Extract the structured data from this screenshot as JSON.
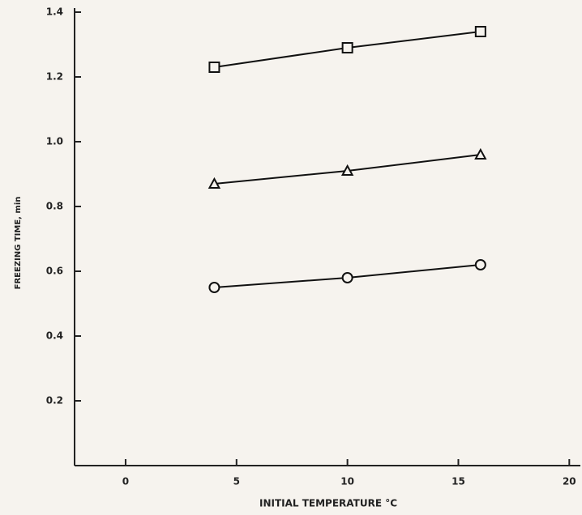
{
  "chart_data": {
    "type": "line",
    "xlabel": "INITIAL TEMPERATURE °C",
    "ylabel": "FREEZING TIME, min",
    "xlim": [
      -2.3,
      20.5
    ],
    "xticks": [
      0,
      5,
      10,
      15,
      20
    ],
    "ylim": [
      0,
      1.4
    ],
    "yticks": [
      0.2,
      0.4,
      0.6,
      0.8,
      {
        "value": 1,
        "label": "1.0"
      },
      1.2,
      1.4
    ],
    "series": [
      {
        "marker": "square",
        "color": "#111111",
        "x": [
          4,
          10,
          16
        ],
        "values": [
          1.23,
          1.29,
          1.34
        ]
      },
      {
        "marker": "triangle",
        "color": "#111111",
        "x": [
          4,
          10,
          16
        ],
        "values": [
          0.87,
          0.91,
          0.96
        ]
      },
      {
        "marker": "circle",
        "color": "#111111",
        "x": [
          4,
          10,
          16
        ],
        "values": [
          0.55,
          0.58,
          0.62
        ]
      }
    ]
  }
}
